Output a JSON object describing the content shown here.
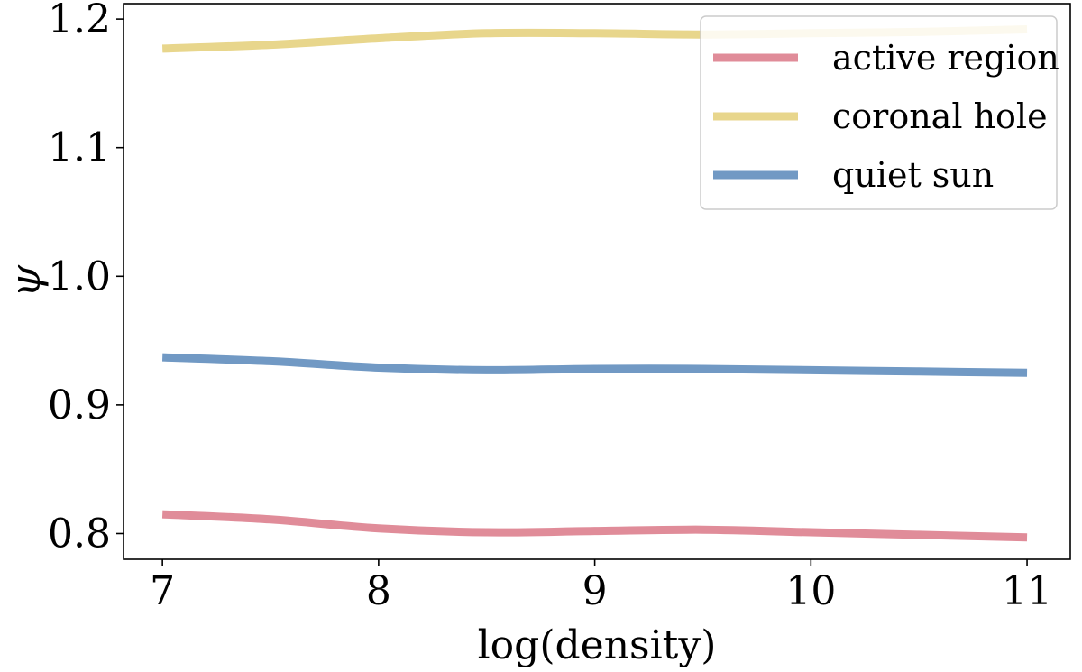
{
  "chart_data": {
    "type": "line",
    "title": "",
    "xlabel": "log(density)",
    "ylabel": "ψ",
    "xlim": [
      6.82,
      11.2
    ],
    "ylim": [
      0.78,
      1.212
    ],
    "xticks": [
      7,
      8,
      9,
      10,
      11
    ],
    "xtick_labels": [
      "7",
      "8",
      "9",
      "10",
      "11"
    ],
    "yticks": [
      0.8,
      0.9,
      1.0,
      1.1,
      1.2
    ],
    "ytick_labels": [
      "0.8",
      "0.9",
      "1.0",
      "1.1",
      "1.2"
    ],
    "grid": false,
    "legend_position": "top-right",
    "x": [
      7.0,
      7.5,
      8.0,
      8.5,
      9.0,
      9.5,
      10.0,
      10.5,
      11.0
    ],
    "series": [
      {
        "name": "active region",
        "color": "#e08c99",
        "values": [
          0.815,
          0.811,
          0.804,
          0.801,
          0.802,
          0.803,
          0.801,
          0.799,
          0.797
        ]
      },
      {
        "name": "coronal hole",
        "color": "#e8d68c",
        "values": [
          1.177,
          1.18,
          1.185,
          1.189,
          1.189,
          1.188,
          1.189,
          1.19,
          1.192
        ]
      },
      {
        "name": "quiet sun",
        "color": "#7199c4",
        "values": [
          0.937,
          0.934,
          0.929,
          0.927,
          0.928,
          0.928,
          0.927,
          0.926,
          0.925
        ]
      }
    ]
  }
}
